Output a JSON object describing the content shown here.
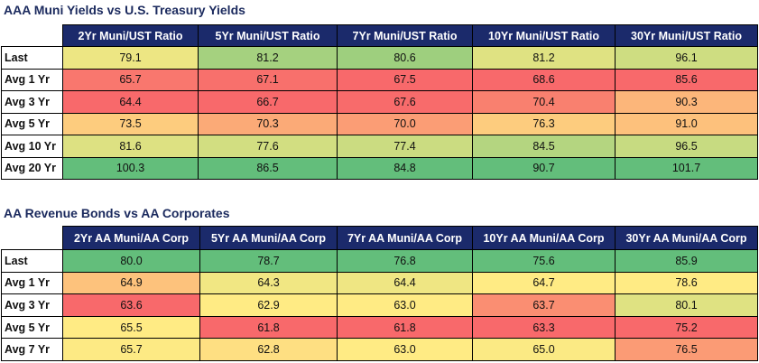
{
  "tables": [
    {
      "title": "AAA Muni Yields vs U.S. Treasury Yields",
      "columns": [
        "2Yr Muni/UST Ratio",
        "5Yr Muni/UST Ratio",
        "7Yr Muni/UST Ratio",
        "10Yr Muni/UST Ratio",
        "30Yr Muni/UST Ratio"
      ],
      "rows": [
        {
          "label": "Last",
          "cells": [
            "79.1",
            "81.2",
            "80.6",
            "81.2",
            "96.1"
          ]
        },
        {
          "label": "Avg 1 Yr",
          "cells": [
            "65.7",
            "67.1",
            "67.5",
            "68.6",
            "85.6"
          ]
        },
        {
          "label": "Avg 3 Yr",
          "cells": [
            "64.4",
            "66.7",
            "67.6",
            "70.4",
            "90.3"
          ]
        },
        {
          "label": "Avg 5 Yr",
          "cells": [
            "73.5",
            "70.3",
            "70.0",
            "76.3",
            "91.0"
          ]
        },
        {
          "label": "Avg 10 Yr",
          "cells": [
            "81.6",
            "77.6",
            "77.4",
            "84.5",
            "96.5"
          ]
        },
        {
          "label": "Avg 20 Yr",
          "cells": [
            "100.3",
            "86.5",
            "84.8",
            "90.7",
            "101.7"
          ]
        }
      ]
    },
    {
      "title": "AA Revenue Bonds vs AA Corporates",
      "columns": [
        "2Yr AA Muni/AA Corp",
        "5Yr AA Muni/AA Corp",
        "7Yr AA Muni/AA Corp",
        "10Yr AA Muni/AA Corp",
        "30Yr AA Muni/AA Corp"
      ],
      "rows": [
        {
          "label": "Last",
          "cells": [
            "80.0",
            "78.7",
            "76.8",
            "75.6",
            "85.9"
          ]
        },
        {
          "label": "Avg 1 Yr",
          "cells": [
            "64.9",
            "64.3",
            "64.4",
            "64.7",
            "78.6"
          ]
        },
        {
          "label": "Avg 3 Yr",
          "cells": [
            "63.6",
            "62.9",
            "63.0",
            "63.7",
            "80.1"
          ]
        },
        {
          "label": "Avg 5 Yr",
          "cells": [
            "65.5",
            "61.8",
            "61.8",
            "63.3",
            "75.2"
          ]
        },
        {
          "label": "Avg 7 Yr",
          "cells": [
            "65.7",
            "62.8",
            "63.0",
            "65.0",
            "76.5"
          ]
        }
      ]
    }
  ]
}
